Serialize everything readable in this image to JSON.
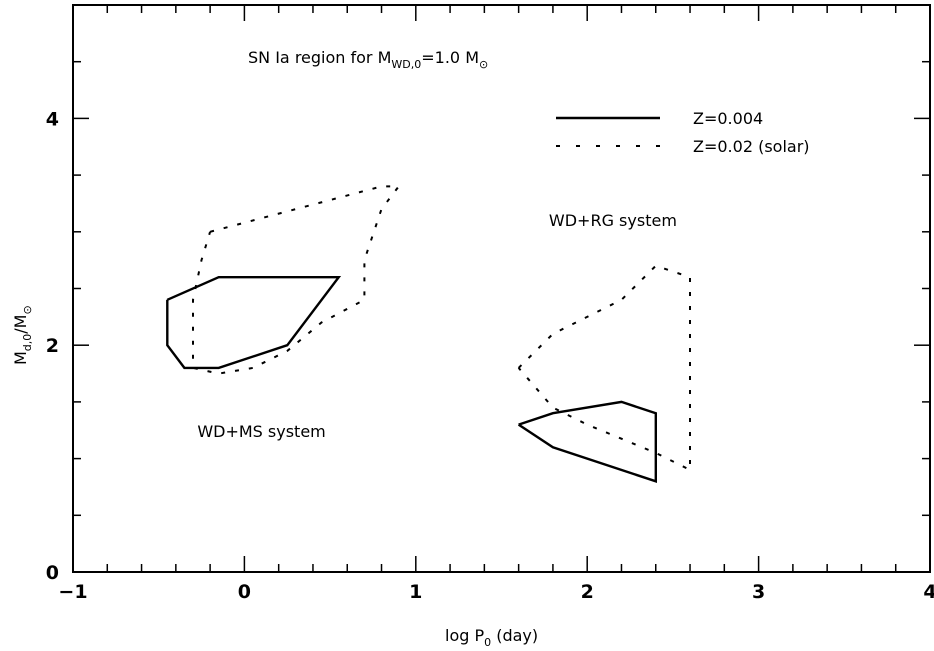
{
  "chart_data": {
    "type": "line",
    "title": {
      "text": "SN Ia region for M",
      "sub": "WD,0",
      "rest": "=1.0 M",
      "symbol": "⊙"
    },
    "xlabel": {
      "main": "log P",
      "sub": "0",
      "rest": " (day)"
    },
    "ylabel": {
      "main": "M",
      "sub": "d,0",
      "rest": "/M",
      "symbol": "⊙"
    },
    "xlim": [
      -1,
      4
    ],
    "ylim": [
      0,
      5
    ],
    "xticks": [
      -1,
      0,
      1,
      2,
      3,
      4
    ],
    "xtick_labels": [
      "−1",
      "0",
      "1",
      "2",
      "3",
      "4"
    ],
    "yticks": [
      0,
      2,
      4
    ],
    "ytick_labels": [
      "0",
      "2",
      "4"
    ],
    "legend": {
      "position": "top-right",
      "entries": [
        {
          "label": "Z=0.004",
          "style": "solid"
        },
        {
          "label": "Z=0.02 (solar)",
          "style": "dotted"
        }
      ]
    },
    "annotations": [
      {
        "text": "WD+RG system",
        "x": 2.15,
        "y": 3.05
      },
      {
        "text": "WD+MS system",
        "x": 0.1,
        "y": 1.19
      }
    ],
    "series": [
      {
        "name": "Z=0.004",
        "group": "WD+MS",
        "style": "solid",
        "points": [
          [
            -0.45,
            2.4
          ],
          [
            -0.15,
            2.6
          ],
          [
            0.55,
            2.6
          ],
          [
            0.25,
            2.0
          ],
          [
            -0.15,
            1.8
          ],
          [
            -0.35,
            1.8
          ],
          [
            -0.45,
            2.0
          ],
          [
            -0.45,
            2.4
          ]
        ]
      },
      {
        "name": "Z=0.004",
        "group": "WD+RG",
        "style": "solid",
        "points": [
          [
            1.6,
            1.3
          ],
          [
            1.8,
            1.4
          ],
          [
            2.2,
            1.5
          ],
          [
            2.4,
            1.4
          ],
          [
            2.4,
            0.8
          ],
          [
            1.8,
            1.1
          ],
          [
            1.6,
            1.3
          ]
        ]
      },
      {
        "name": "Z=0.02 (solar)",
        "group": "WD+MS",
        "style": "dotted",
        "points": [
          [
            -0.2,
            3.0
          ],
          [
            0.3,
            3.2
          ],
          [
            0.8,
            3.4
          ],
          [
            0.9,
            3.4
          ],
          [
            0.8,
            3.2
          ],
          [
            0.7,
            2.75
          ],
          [
            0.7,
            2.4
          ],
          [
            0.45,
            2.2
          ],
          [
            0.25,
            1.95
          ],
          [
            0.05,
            1.8
          ],
          [
            -0.15,
            1.75
          ],
          [
            -0.3,
            1.8
          ],
          [
            -0.3,
            2.1
          ],
          [
            -0.3,
            2.4
          ],
          [
            -0.25,
            2.75
          ],
          [
            -0.2,
            3.0
          ]
        ]
      },
      {
        "name": "Z=0.02 (solar)",
        "group": "WD+RG",
        "style": "dotted",
        "points": [
          [
            1.6,
            1.8
          ],
          [
            1.8,
            2.1
          ],
          [
            2.2,
            2.4
          ],
          [
            2.4,
            2.7
          ],
          [
            2.6,
            2.6
          ],
          [
            2.6,
            1.6
          ],
          [
            2.6,
            0.9
          ],
          [
            2.4,
            1.05
          ],
          [
            2.0,
            1.3
          ],
          [
            1.8,
            1.45
          ],
          [
            1.6,
            1.8
          ]
        ]
      }
    ]
  }
}
